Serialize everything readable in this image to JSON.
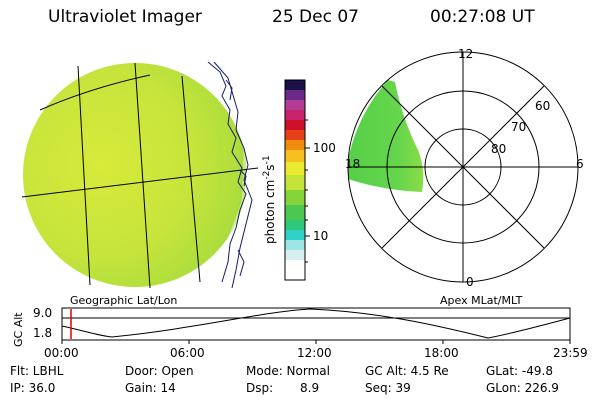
{
  "header": {
    "instrument": "Ultraviolet Imager",
    "date": "25 Dec 07",
    "time": "00:27:08 UT"
  },
  "colorbar": {
    "unit_label": "photon cm",
    "unit_exp1": "-2",
    "unit_mid": "s",
    "unit_exp2": "-1",
    "ticks": [
      "100",
      "10"
    ]
  },
  "panels": {
    "left_label": "Geographic Lat/Lon",
    "right_label": "Apex MLat/MLT"
  },
  "polar": {
    "mlt_labels": {
      "top": "12",
      "left": "18",
      "right": "6",
      "bottom": "0"
    },
    "mlat_labels": [
      "60",
      "70",
      "80"
    ]
  },
  "altitude_plot": {
    "y_label": "GC Alt",
    "y_ticks": [
      "9.0",
      "1.8"
    ],
    "x_ticks": [
      "00:00",
      "06:00",
      "12:00",
      "18:00",
      "23:59"
    ]
  },
  "status": {
    "row1": {
      "flt": "Flt: LBHL",
      "door": "Door: Open",
      "mode": "Mode: Normal",
      "gc_alt": "GC Alt: 4.5 Re",
      "glat": "GLat: -49.8"
    },
    "row2": {
      "ip": "IP: 36.0",
      "gain": "Gain: 14",
      "dsp_label": "Dsp:",
      "dsp_value": "8.9",
      "seq": "Seq: 39",
      "glon": "GLon: 226.9"
    }
  },
  "colors": {
    "cursor": "#e00000",
    "image_main": "#c8e63c",
    "image_edge": "#9ad83a",
    "auroral": "#5fd34a"
  }
}
